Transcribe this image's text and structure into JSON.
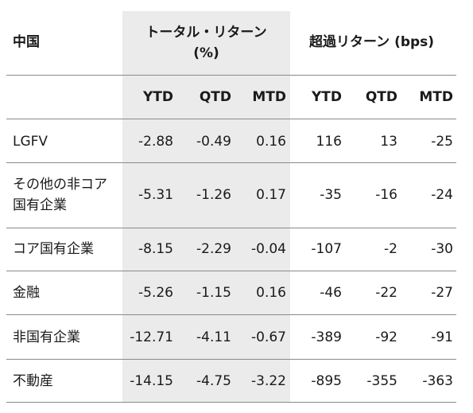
{
  "table": {
    "corner_label": "中国",
    "group_total": "トータル・リターン",
    "group_total_unit": "(%)",
    "group_excess": "超過リターン (bps)",
    "sub_headers": [
      "YTD",
      "QTD",
      "MTD",
      "YTD",
      "QTD",
      "MTD"
    ],
    "rows": [
      {
        "label": [
          "LGFV"
        ],
        "values": [
          "-2.88",
          "-0.49",
          "0.16",
          "116",
          "13",
          "-25"
        ]
      },
      {
        "label": [
          "その他の非コア",
          "国有企業"
        ],
        "values": [
          "-5.31",
          "-1.26",
          "0.17",
          "-35",
          "-16",
          "-24"
        ]
      },
      {
        "label": [
          "コア国有企業"
        ],
        "values": [
          "-8.15",
          "-2.29",
          "-0.04",
          "-107",
          "-2",
          "-30"
        ]
      },
      {
        "label": [
          "金融"
        ],
        "values": [
          "-5.26",
          "-1.15",
          "0.16",
          "-46",
          "-22",
          "-27"
        ]
      },
      {
        "label": [
          "非国有企業"
        ],
        "values": [
          "-12.71",
          "-4.11",
          "-0.67",
          "-389",
          "-92",
          "-91"
        ]
      },
      {
        "label": [
          "不動産"
        ],
        "values": [
          "-14.15",
          "-4.75",
          "-3.22",
          "-895",
          "-355",
          "-363"
        ]
      }
    ]
  }
}
